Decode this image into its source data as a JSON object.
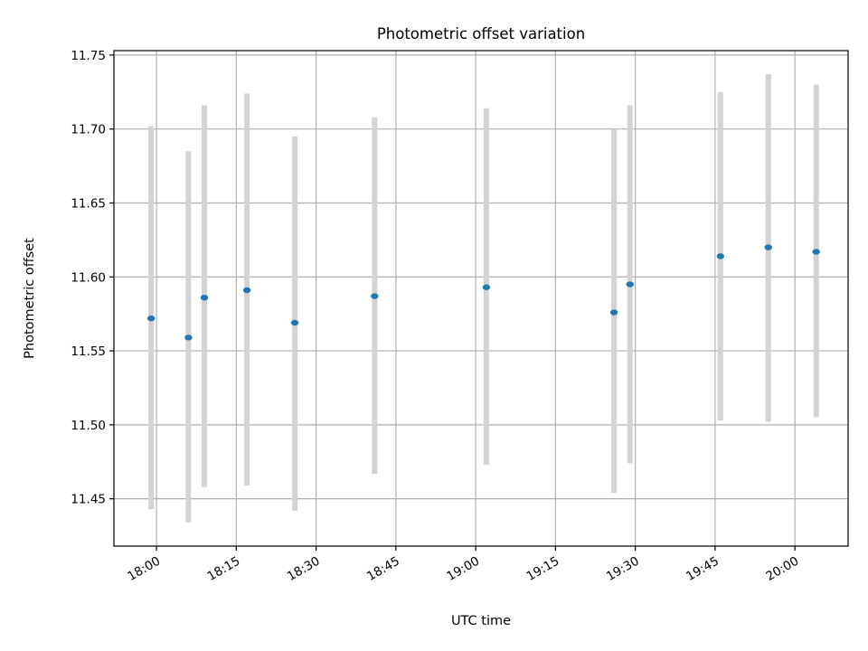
{
  "chart_data": {
    "type": "scatter",
    "title": "Photometric offset variation",
    "xlabel": "UTC time",
    "ylabel": "Photometric offset",
    "x_axis_type": "time",
    "x_ticks": [
      "18:00",
      "18:15",
      "18:30",
      "18:45",
      "19:00",
      "19:15",
      "19:30",
      "19:45",
      "20:00"
    ],
    "y_ticks": [
      "11.45",
      "11.50",
      "11.55",
      "11.60",
      "11.65",
      "11.70",
      "11.75"
    ],
    "xlim": [
      "17:52",
      "20:10"
    ],
    "ylim": [
      11.418,
      11.753
    ],
    "grid": true,
    "point_color": "#1f77b4",
    "errorbar_color": "#d3d3d3",
    "points": [
      {
        "time": "17:59",
        "y": 11.572,
        "low": 11.443,
        "high": 11.702
      },
      {
        "time": "18:06",
        "y": 11.559,
        "low": 11.434,
        "high": 11.685
      },
      {
        "time": "18:09",
        "y": 11.586,
        "low": 11.458,
        "high": 11.716
      },
      {
        "time": "18:17",
        "y": 11.591,
        "low": 11.459,
        "high": 11.724
      },
      {
        "time": "18:26",
        "y": 11.569,
        "low": 11.442,
        "high": 11.695
      },
      {
        "time": "18:41",
        "y": 11.587,
        "low": 11.467,
        "high": 11.708
      },
      {
        "time": "19:02",
        "y": 11.593,
        "low": 11.473,
        "high": 11.714
      },
      {
        "time": "19:26",
        "y": 11.576,
        "low": 11.454,
        "high": 11.7
      },
      {
        "time": "19:29",
        "y": 11.595,
        "low": 11.474,
        "high": 11.716
      },
      {
        "time": "19:46",
        "y": 11.614,
        "low": 11.503,
        "high": 11.725
      },
      {
        "time": "19:55",
        "y": 11.62,
        "low": 11.502,
        "high": 11.737
      },
      {
        "time": "20:04",
        "y": 11.617,
        "low": 11.505,
        "high": 11.73
      }
    ]
  }
}
